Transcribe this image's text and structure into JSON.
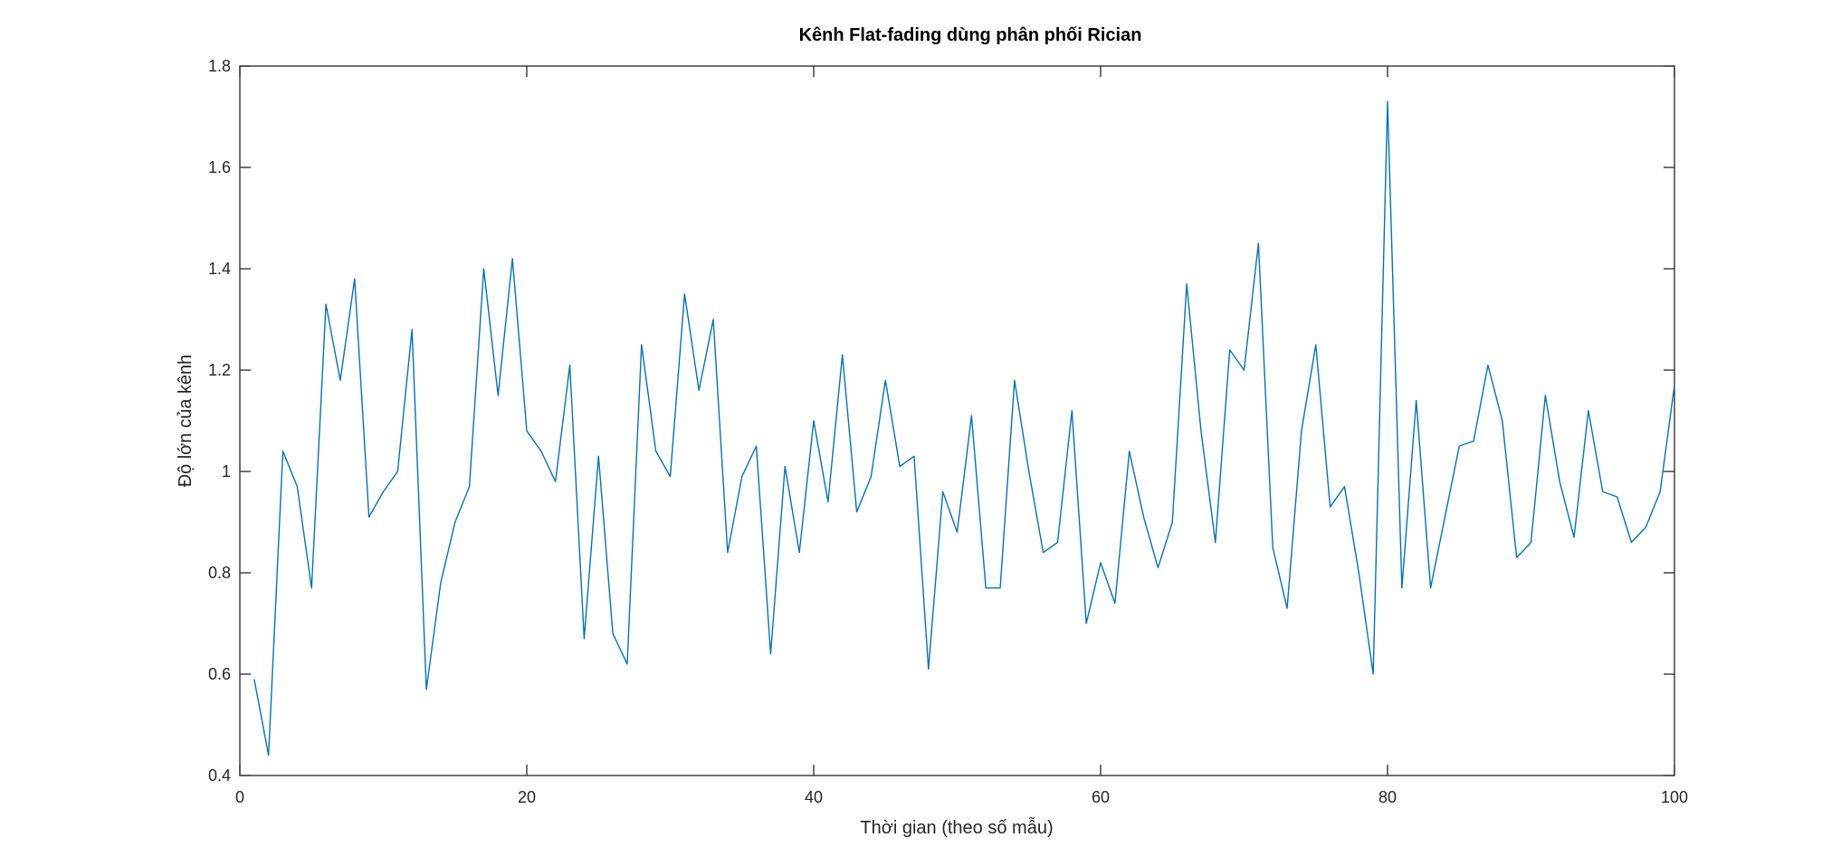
{
  "chart_data": {
    "type": "line",
    "title": "Kênh Flat-fading dùng phân phối Rician",
    "xlabel": "Thời gian (theo số mẫu)",
    "ylabel": "Độ lớn của kênh",
    "xlim": [
      0,
      100
    ],
    "ylim": [
      0.4,
      1.8
    ],
    "xticks": [
      0,
      20,
      40,
      60,
      80,
      100
    ],
    "yticks": [
      0.4,
      0.6,
      0.8,
      1,
      1.2,
      1.4,
      1.6,
      1.8
    ],
    "xtick_labels": [
      "0",
      "20",
      "40",
      "60",
      "80",
      "100"
    ],
    "ytick_labels": [
      "0.4",
      "0.6",
      "0.8",
      "1",
      "1.2",
      "1.4",
      "1.6",
      "1.8"
    ],
    "grid": false,
    "legend": "none",
    "color": "#0072BD",
    "series": [
      {
        "x": [
          1,
          2,
          3,
          4,
          5,
          6,
          7,
          8,
          9,
          10,
          11,
          12,
          13,
          14,
          15,
          16,
          17,
          18,
          19,
          20,
          21,
          22,
          23,
          24,
          25,
          26,
          27,
          28,
          29,
          30,
          31,
          32,
          33,
          34,
          35,
          36,
          37,
          38,
          39,
          40,
          41,
          42,
          43,
          44,
          45,
          46,
          47,
          48,
          49,
          50,
          51,
          52,
          53,
          54,
          55,
          56,
          57,
          58,
          59,
          60,
          61,
          62,
          63,
          64,
          65,
          66,
          67,
          68,
          69,
          70,
          71,
          72,
          73,
          74,
          75,
          76,
          77,
          78,
          79,
          80,
          81,
          82,
          83,
          84,
          85,
          86,
          87,
          88,
          89,
          90,
          91,
          92,
          93,
          94,
          95,
          96,
          97,
          98,
          99,
          100
        ],
        "values": [
          0.59,
          0.44,
          1.04,
          0.97,
          0.77,
          1.33,
          1.18,
          1.38,
          0.91,
          0.96,
          1.0,
          1.28,
          0.57,
          0.78,
          0.9,
          0.97,
          1.4,
          1.15,
          1.42,
          1.08,
          1.04,
          0.98,
          1.21,
          0.67,
          1.03,
          0.68,
          0.62,
          1.25,
          1.04,
          0.99,
          1.35,
          1.16,
          1.3,
          0.84,
          0.99,
          1.05,
          0.64,
          1.01,
          0.84,
          1.1,
          0.94,
          1.23,
          0.92,
          0.99,
          1.18,
          1.01,
          1.03,
          0.61,
          0.96,
          0.88,
          1.11,
          0.77,
          0.77,
          1.18,
          1.0,
          0.84,
          0.86,
          1.12,
          0.7,
          0.82,
          0.74,
          1.04,
          0.91,
          0.81,
          0.9,
          1.37,
          1.08,
          0.86,
          1.24,
          1.2,
          1.45,
          0.85,
          0.73,
          1.08,
          1.25,
          0.93,
          0.97,
          0.8,
          0.6,
          1.73,
          0.77,
          1.14,
          0.77,
          0.91,
          1.05,
          1.06,
          1.21,
          1.1,
          0.83,
          0.86,
          1.15,
          0.98,
          0.87,
          1.12,
          0.96,
          0.95,
          0.86,
          0.89,
          0.96,
          1.17
        ]
      }
    ]
  }
}
